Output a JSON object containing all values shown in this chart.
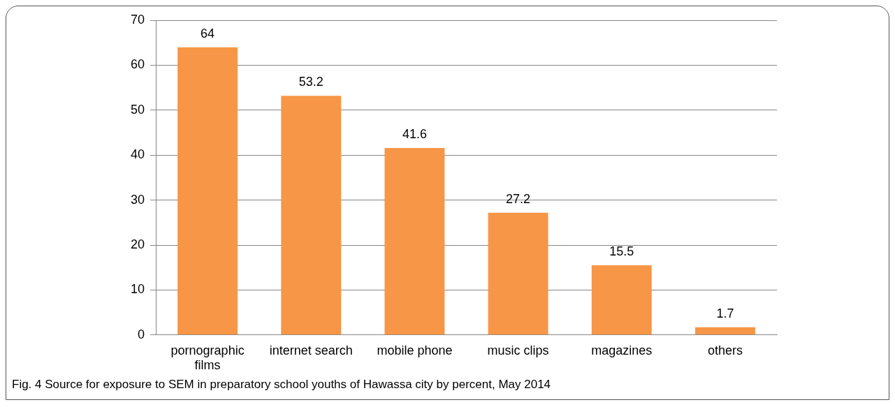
{
  "chart_data": {
    "type": "bar",
    "categories": [
      "pornographic films",
      "internet search",
      "mobile phone",
      "music clips",
      "magazines",
      "others"
    ],
    "values": [
      64,
      53.2,
      41.6,
      27.2,
      15.5,
      1.7
    ],
    "color": "#f79646",
    "ylim": [
      0,
      70
    ],
    "yticks": [
      0,
      10,
      20,
      30,
      40,
      50,
      60,
      70
    ],
    "grid": "y",
    "data_labels": true,
    "legend": false,
    "annotations": [
      "Fig. 4 Source for exposure to SEM in preparatory school youths of Hawassa city by percent, May 2014"
    ]
  }
}
